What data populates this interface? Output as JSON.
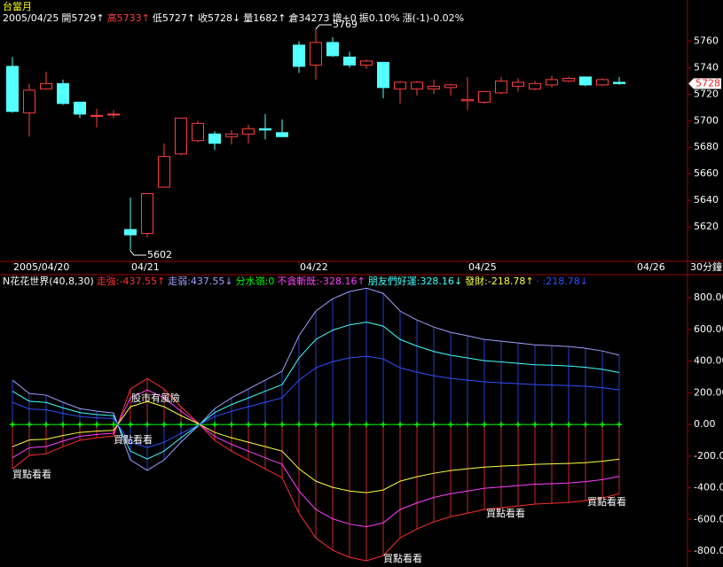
{
  "chart_data": [
    {
      "type": "candlestick",
      "title": "台當月",
      "info": [
        {
          "text": "2005/04/25",
          "color": "#ffffff"
        },
        {
          "text": "開5729↑",
          "color": "#ffffff"
        },
        {
          "text": "高5733↑",
          "color": "#ff4040"
        },
        {
          "text": "低5727↑",
          "color": "#ffffff"
        },
        {
          "text": "收5728↓",
          "color": "#ffffff"
        },
        {
          "text": "量1682↑",
          "color": "#ffffff"
        },
        {
          "text": "倉34273",
          "color": "#ffffff"
        },
        {
          "text": "增+0",
          "color": "#ffffff"
        },
        {
          "text": "振0.10%",
          "color": "#ffffff"
        },
        {
          "text": "漲(-1)-0.02%",
          "color": "#ffffff"
        }
      ],
      "categories": [
        "2005/04/20",
        null,
        null,
        null,
        null,
        null,
        null,
        "04/21",
        null,
        null,
        null,
        null,
        null,
        null,
        null,
        null,
        null,
        "04/22",
        null,
        null,
        null,
        null,
        null,
        null,
        null,
        null,
        null,
        "04/25",
        null,
        null,
        null,
        null,
        null,
        null,
        null,
        null,
        null,
        "04/26"
      ],
      "open": [
        5741,
        5706,
        5724,
        5728,
        5714,
        5704,
        5705,
        5618,
        5615,
        5650,
        5675,
        5685,
        5690,
        5688,
        5690,
        5694,
        5691,
        5757,
        5742,
        5759,
        5748,
        5742,
        5744,
        5724,
        5724,
        5724,
        5725,
        5715,
        5714,
        5721,
        5726,
        5724,
        5727,
        5730,
        5733,
        5727,
        5729,
        null
      ],
      "high": [
        5748,
        5728,
        5737,
        5731,
        5714,
        5709,
        5708,
        5642,
        5645,
        5683,
        5702,
        5700,
        5692,
        5693,
        5697,
        5705,
        5701,
        5760,
        5769,
        5763,
        5752,
        5746,
        5744,
        5730,
        5730,
        5731,
        5728,
        5733,
        5722,
        5733,
        5732,
        5730,
        5734,
        5733,
        5733,
        5732,
        5733,
        null
      ],
      "low": [
        5706,
        5688,
        5724,
        5712,
        5702,
        5695,
        5702,
        5602,
        5612,
        5650,
        5674,
        5684,
        5678,
        5682,
        5683,
        5686,
        5688,
        5736,
        5731,
        5748,
        5740,
        5739,
        5717,
        5713,
        5719,
        5720,
        5719,
        5708,
        5713,
        5720,
        5722,
        5723,
        5725,
        5729,
        5726,
        5726,
        5727,
        null
      ],
      "close": [
        5707,
        5723,
        5728,
        5713,
        5705,
        5704,
        5705,
        5614,
        5645,
        5673,
        5702,
        5698,
        5683,
        5690,
        5694,
        5693,
        5688,
        5741,
        5759,
        5749,
        5742,
        5745,
        5725,
        5729,
        5729,
        5726,
        5727,
        5716,
        5722,
        5730,
        5729,
        5728,
        5731,
        5732,
        5727,
        5731,
        5728,
        null
      ],
      "up_color": "#ff4040",
      "down_color": "#54ffff",
      "extreme_labels": [
        {
          "value": 5769,
          "label": "5769"
        },
        {
          "value": 5602,
          "label": "5602"
        }
      ],
      "last_price": 5728,
      "interval": "30分鐘",
      "ylim": [
        5594,
        5781
      ],
      "yticks": [
        5620,
        5640,
        5660,
        5680,
        5700,
        5720,
        5740,
        5760
      ]
    },
    {
      "type": "line",
      "title": "N花花世界(40,8,30)",
      "series": [
        {
          "name": "走強:-437.55↑",
          "color": "#ff3030",
          "values": [
            -280,
            -196,
            -185,
            -140,
            -100,
            -84,
            -73,
            224,
            290,
            224,
            112,
            11,
            -100,
            -168,
            -224,
            -280,
            -336,
            -560,
            -716,
            -794,
            -839,
            -861,
            -828,
            -716,
            -660,
            -615,
            -582,
            -560,
            -537,
            -526,
            -515,
            -503,
            -498,
            -492,
            -481,
            -464,
            -437.55,
            null
          ]
        },
        {
          "name": "走弱:437.55↓",
          "color": "#a0a0ff",
          "values": [
            280,
            196,
            185,
            140,
            100,
            84,
            73,
            -224,
            -290,
            -224,
            -112,
            -11,
            100,
            168,
            224,
            280,
            336,
            560,
            716,
            794,
            839,
            861,
            828,
            716,
            660,
            615,
            582,
            560,
            537,
            526,
            515,
            503,
            498,
            492,
            481,
            464,
            437.55,
            null
          ]
        },
        {
          "name": "分水嶺:0",
          "color": "#00ff00",
          "values": [
            0,
            0,
            0,
            0,
            0,
            0,
            0,
            0,
            0,
            0,
            0,
            0,
            0,
            0,
            0,
            0,
            0,
            0,
            0,
            0,
            0,
            0,
            0,
            0,
            0,
            0,
            0,
            0,
            0,
            0,
            0,
            0,
            0,
            0,
            0,
            0,
            0,
            null
          ]
        },
        {
          "name": "不貪斬既:-328.16↑",
          "color": "#ff40ff",
          "values": [
            -210,
            -147,
            -139,
            -105,
            -75,
            -63,
            -55,
            168,
            218,
            168,
            84,
            8,
            -75,
            -126,
            -168,
            -210,
            -252,
            -420,
            -537,
            -596,
            -629,
            -646,
            -621,
            -537,
            -495,
            -461,
            -437,
            -420,
            -403,
            -395,
            -386,
            -377,
            -374,
            -369,
            -361,
            -348,
            -328.16,
            null
          ]
        },
        {
          "name": "朋友們好運:328.16↓",
          "color": "#40ffff",
          "values": [
            210,
            147,
            139,
            105,
            75,
            63,
            55,
            -168,
            -218,
            -168,
            -84,
            -8,
            75,
            126,
            168,
            210,
            252,
            420,
            537,
            596,
            629,
            646,
            621,
            537,
            495,
            461,
            437,
            420,
            403,
            395,
            386,
            377,
            374,
            369,
            361,
            348,
            328.16,
            null
          ]
        },
        {
          "name": "發財:-218.78↑",
          "color": "#ffff40",
          "values": [
            -140,
            -98,
            -93,
            -70,
            -50,
            -42,
            -37,
            112,
            145,
            112,
            56,
            6,
            -50,
            -84,
            -112,
            -140,
            -168,
            -280,
            -358,
            -397,
            -420,
            -431,
            -414,
            -358,
            -330,
            -308,
            -291,
            -280,
            -269,
            -263,
            -258,
            -252,
            -249,
            -246,
            -241,
            -232,
            -218.78,
            null
          ]
        },
        {
          "name": "· :218.78↓",
          "color": "#3050ff",
          "values": [
            140,
            98,
            93,
            70,
            50,
            42,
            37,
            -112,
            -145,
            -112,
            -56,
            -6,
            50,
            84,
            112,
            140,
            168,
            280,
            358,
            397,
            420,
            431,
            414,
            358,
            330,
            308,
            291,
            280,
            269,
            263,
            258,
            252,
            249,
            246,
            241,
            232,
            218.78,
            null
          ]
        }
      ],
      "annotations": [
        "股市有風險",
        "買點看看",
        "買點看看",
        "買點看看",
        "買點看看",
        "買點看看"
      ],
      "ylim": [
        -900,
        935
      ],
      "yticks": [
        {
          "value": 800,
          "label": "800.00"
        },
        {
          "value": 600,
          "label": "600.00"
        },
        {
          "value": 400,
          "label": "400.00"
        },
        {
          "value": 200,
          "label": "200.00"
        },
        {
          "value": 0,
          "label": "0.00"
        },
        {
          "value": -200,
          "label": "-200.00"
        },
        {
          "value": -400,
          "label": "-400.00"
        },
        {
          "value": -600,
          "label": "-600.00"
        },
        {
          "value": -800,
          "label": "-800.00"
        }
      ]
    }
  ]
}
